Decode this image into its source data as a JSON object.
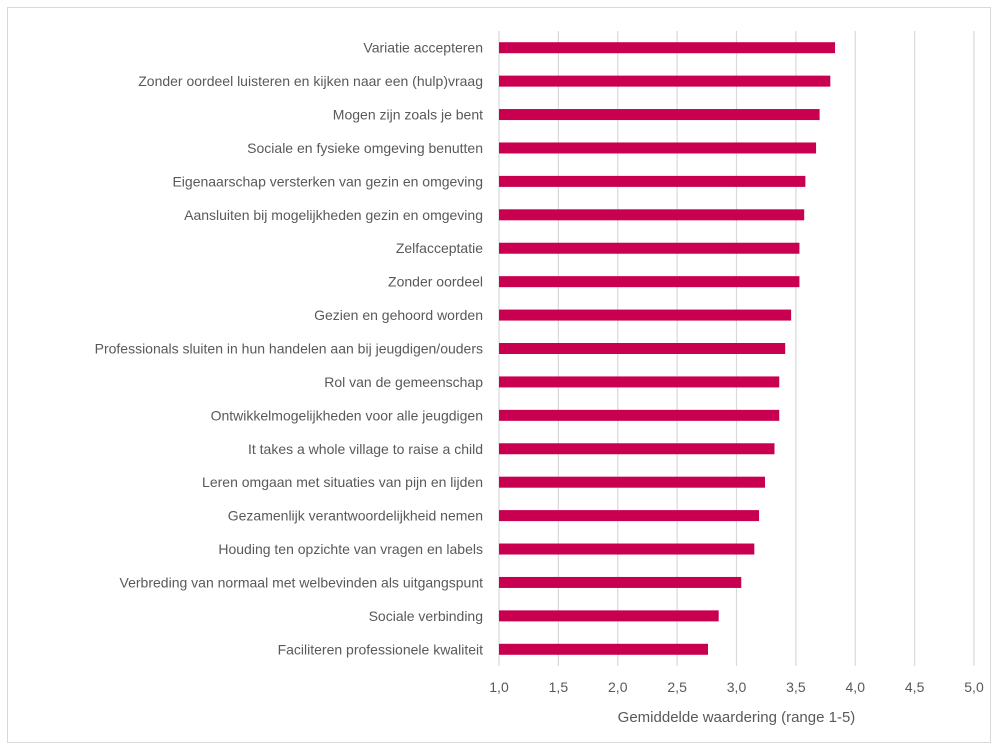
{
  "chart_data": {
    "type": "bar",
    "orientation": "horizontal",
    "title": "",
    "xlabel": "Gemiddelde waardering (range 1-5)",
    "ylabel": "",
    "xlim": [
      1.0,
      5.0
    ],
    "x_ticks": [
      "1,0",
      "1,5",
      "2,0",
      "2,5",
      "3,0",
      "3,5",
      "4,0",
      "4,5",
      "5,0"
    ],
    "grid": "vertical",
    "legend": "none",
    "bar_color": "#c8004f",
    "grid_color": "#d9d9d9",
    "categories": [
      "Variatie accepteren",
      "Zonder oordeel luisteren en kijken naar een (hulp)vraag",
      "Mogen zijn zoals je bent",
      "Sociale en fysieke omgeving benutten",
      "Eigenaarschap versterken van gezin en omgeving",
      "Aansluiten bij mogelijkheden gezin en omgeving",
      "Zelfacceptatie",
      "Zonder oordeel",
      "Gezien en gehoord worden",
      "Professionals sluiten in hun handelen aan bij jeugdigen/ouders",
      "Rol van de gemeenschap",
      "Ontwikkelmogelijkheden voor alle jeugdigen",
      "It takes a whole village to raise a child",
      "Leren omgaan met situaties van pijn en lijden",
      "Gezamenlijk verantwoordelijkheid nemen",
      "Houding ten opzichte van vragen en labels",
      "Verbreding van normaal met welbevinden als uitgangspunt",
      "Sociale verbinding",
      "Faciliteren professionele kwaliteit"
    ],
    "values": [
      3.83,
      3.79,
      3.7,
      3.67,
      3.58,
      3.57,
      3.53,
      3.53,
      3.46,
      3.41,
      3.36,
      3.36,
      3.32,
      3.24,
      3.19,
      3.15,
      3.04,
      2.85,
      2.76
    ]
  }
}
